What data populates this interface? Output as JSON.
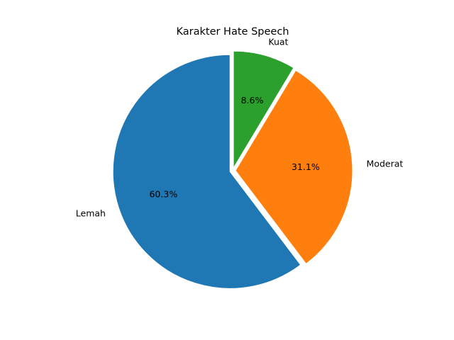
{
  "chart_data": {
    "type": "pie",
    "title": "Karakter Hate Speech",
    "start_angle_deg": 90,
    "direction": "clockwise",
    "explode": true,
    "slices": [
      {
        "label": "Kuat",
        "value": 8.6,
        "pct_label": "8.6%",
        "color": "#2ca02c"
      },
      {
        "label": "Moderat",
        "value": 31.1,
        "pct_label": "31.1%",
        "color": "#ff7f0e"
      },
      {
        "label": "Lemah",
        "value": 60.3,
        "pct_label": "60.3%",
        "color": "#1f77b4"
      }
    ]
  }
}
